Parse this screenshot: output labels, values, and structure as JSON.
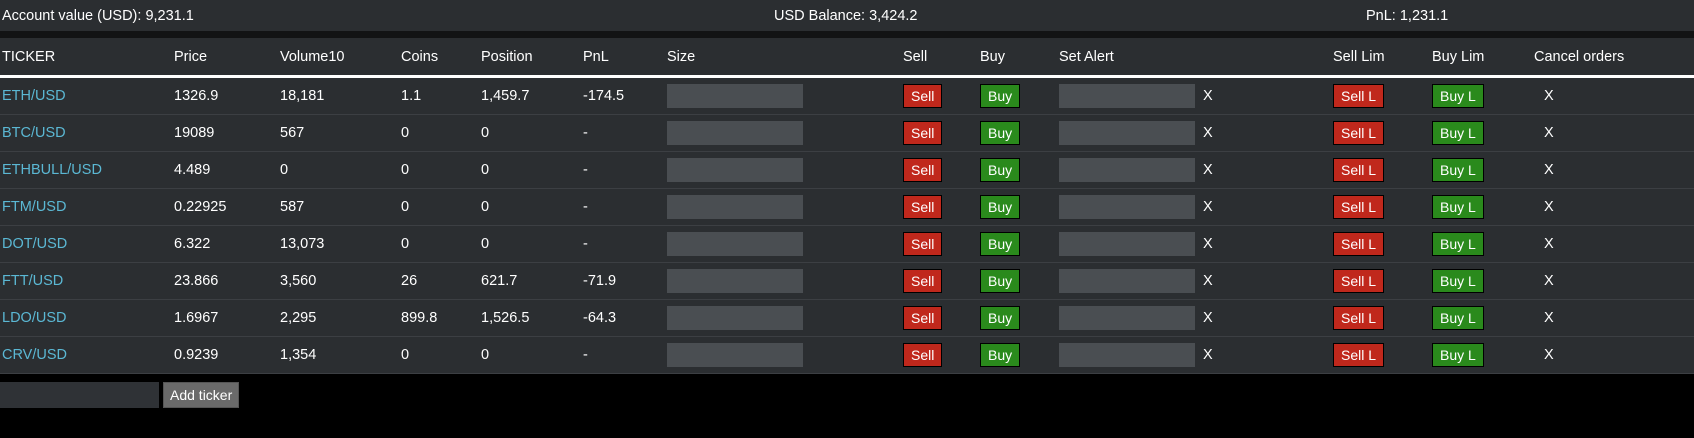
{
  "summary": {
    "account_value": "Account value (USD): 9,231.1",
    "usd_balance": "USD Balance: 3,424.2",
    "pnl": "PnL: 1,231.1"
  },
  "headers": {
    "ticker": "TICKER",
    "price": "Price",
    "volume": "Volume10",
    "coins": "Coins",
    "position": "Position",
    "pnl": "PnL",
    "size": "Size",
    "sell": "Sell",
    "buy": "Buy",
    "set_alert": "Set Alert",
    "sell_lim": "Sell Lim",
    "buy_lim": "Buy Lim",
    "cancel_orders": "Cancel orders"
  },
  "buttons": {
    "sell": "Sell",
    "buy": "Buy",
    "sell_limit": "Sell L",
    "buy_limit": "Buy L",
    "clear_alert": "X",
    "cancel": "X",
    "add_ticker": "Add ticker"
  },
  "colors": {
    "sell": "#c0281c",
    "buy": "#2a8a1c",
    "ticker_link": "#5bb8d4"
  },
  "rows": [
    {
      "ticker": "ETH/USD",
      "price": "1326.9",
      "volume": "18,181",
      "coins": "1.1",
      "position": "1,459.7",
      "pnl": "-174.5"
    },
    {
      "ticker": "BTC/USD",
      "price": "19089",
      "volume": "567",
      "coins": "0",
      "position": "0",
      "pnl": "-"
    },
    {
      "ticker": "ETHBULL/USD",
      "price": "4.489",
      "volume": "0",
      "coins": "0",
      "position": "0",
      "pnl": "-"
    },
    {
      "ticker": "FTM/USD",
      "price": "0.22925",
      "volume": "587",
      "coins": "0",
      "position": "0",
      "pnl": "-"
    },
    {
      "ticker": "DOT/USD",
      "price": "6.322",
      "volume": "13,073",
      "coins": "0",
      "position": "0",
      "pnl": "-"
    },
    {
      "ticker": "FTT/USD",
      "price": "23.866",
      "volume": "3,560",
      "coins": "26",
      "position": "621.7",
      "pnl": "-71.9"
    },
    {
      "ticker": "LDO/USD",
      "price": "1.6967",
      "volume": "2,295",
      "coins": "899.8",
      "position": "1,526.5",
      "pnl": "-64.3"
    },
    {
      "ticker": "CRV/USD",
      "price": "0.9239",
      "volume": "1,354",
      "coins": "0",
      "position": "0",
      "pnl": "-"
    }
  ]
}
